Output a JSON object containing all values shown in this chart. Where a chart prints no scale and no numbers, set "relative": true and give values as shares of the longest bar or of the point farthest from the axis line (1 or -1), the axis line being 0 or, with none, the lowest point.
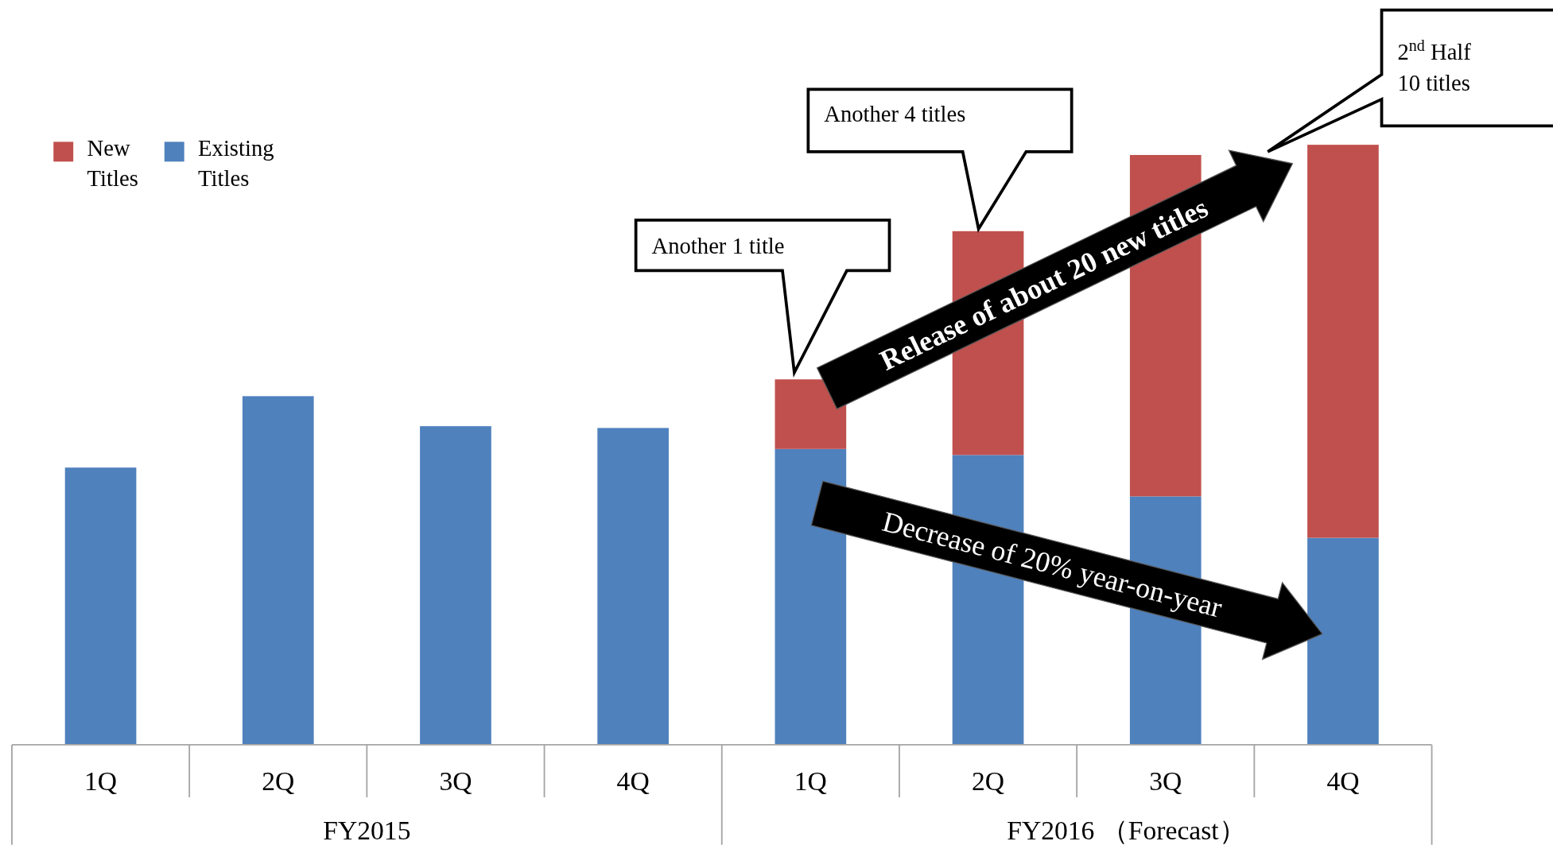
{
  "chart_data": {
    "type": "bar",
    "stacked": true,
    "relative": true,
    "legend": "top left",
    "categories": [
      "1Q",
      "2Q",
      "3Q",
      "4Q",
      "1Q",
      "2Q",
      "3Q",
      "4Q"
    ],
    "series": [
      {
        "name": "Existing Titles",
        "color": "#4f81bd",
        "values": [
          0.462,
          0.581,
          0.531,
          0.528,
          0.493,
          0.483,
          0.414,
          0.345
        ]
      },
      {
        "name": "New Titles",
        "color": "#c0504d",
        "values": [
          null,
          null,
          null,
          null,
          0.116,
          0.373,
          0.569,
          0.655
        ]
      }
    ],
    "annotations": [
      "FY2015",
      "FY2016 （Forecast）",
      "Another 1 title",
      "Another 4 titles",
      "2$^{nd}$ Half\n10 titles",
      "Release of about 20 new titles",
      "Decrease of 20% year-on-year"
    ]
  }
}
